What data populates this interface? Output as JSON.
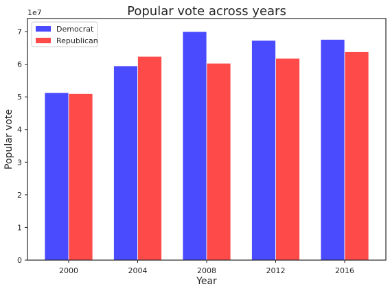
{
  "chart_data": {
    "type": "bar",
    "title": "Popular vote across years",
    "xlabel": "Year",
    "ylabel": "Popular vote",
    "y_multiplier_label": "1e7",
    "categories": [
      "2000",
      "2004",
      "2008",
      "2012",
      "2016"
    ],
    "ylim": [
      0,
      74000000
    ],
    "yticks": [
      0,
      10000000,
      20000000,
      30000000,
      40000000,
      50000000,
      60000000,
      70000000
    ],
    "ytick_labels": [
      "0",
      "1",
      "2",
      "3",
      "4",
      "5",
      "6",
      "7"
    ],
    "grid": false,
    "legend_position": "top-left",
    "series": [
      {
        "name": "Democrat",
        "color": "#4a4aff",
        "values": [
          51300000,
          59500000,
          70000000,
          67300000,
          67600000
        ]
      },
      {
        "name": "Republican",
        "color": "#ff4a4a",
        "values": [
          51000000,
          62400000,
          60300000,
          61800000,
          63800000
        ]
      }
    ]
  }
}
